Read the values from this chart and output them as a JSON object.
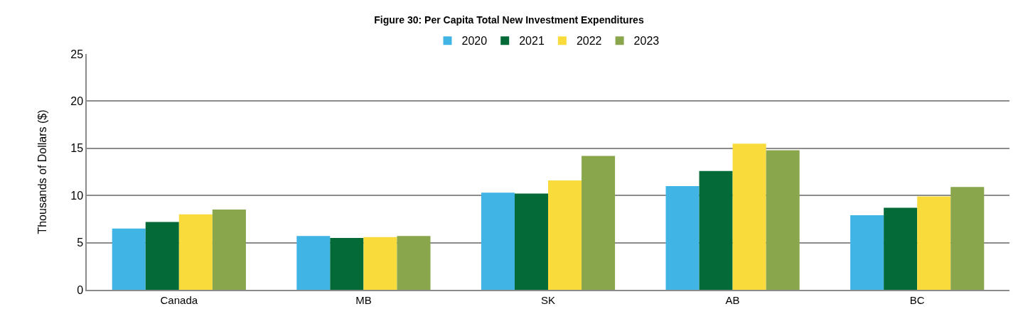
{
  "chart_data": {
    "type": "bar",
    "title": "Figure 30: Per Capita Total New Investment Expenditures",
    "ylabel": "Thousands of Dollars ($)",
    "categories": [
      "Canada",
      "MB",
      "SK",
      "AB",
      "BC"
    ],
    "series": [
      {
        "name": "2020",
        "color": "#41b4e6",
        "values": [
          6.5,
          5.7,
          10.3,
          11.0,
          7.9
        ]
      },
      {
        "name": "2021",
        "color": "#046a38",
        "values": [
          7.2,
          5.5,
          10.2,
          12.6,
          8.7
        ]
      },
      {
        "name": "2022",
        "color": "#f9dc3c",
        "values": [
          8.0,
          5.6,
          11.6,
          15.5,
          9.9
        ]
      },
      {
        "name": "2023",
        "color": "#8aa64d",
        "values": [
          8.5,
          5.7,
          14.2,
          14.8,
          10.9
        ]
      }
    ],
    "ylim": [
      0,
      25
    ],
    "yticks": [
      0,
      5,
      10,
      15,
      20,
      25
    ],
    "grid": "y",
    "legend": "top"
  }
}
